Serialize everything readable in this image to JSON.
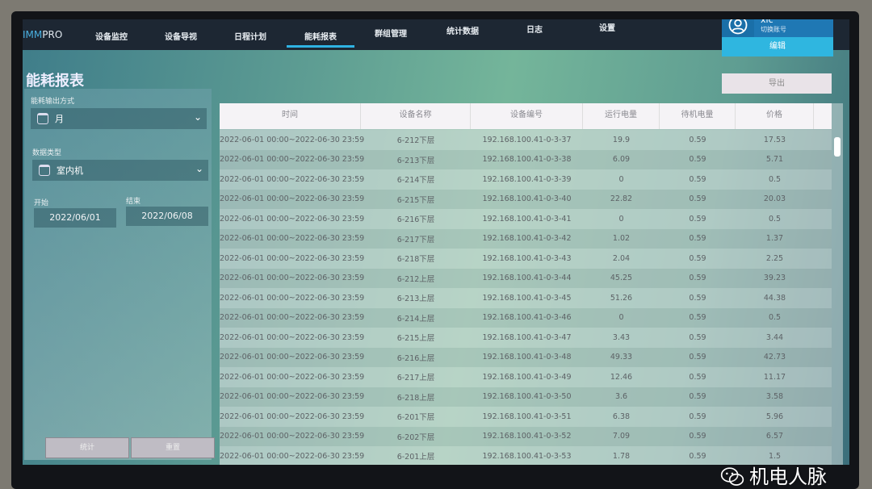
{
  "app": {
    "logo_prefix": "IMM",
    "logo_suffix": "PRO"
  },
  "nav": {
    "items": [
      {
        "label": "设备监控"
      },
      {
        "label": "设备导视"
      },
      {
        "label": "日程计划"
      },
      {
        "label": "能耗报表",
        "active": true
      },
      {
        "label": "群组管理"
      },
      {
        "label": "统计数据"
      },
      {
        "label": "日志"
      },
      {
        "label": "设置"
      }
    ]
  },
  "user": {
    "name": "xlc",
    "switch_label": "切换账号",
    "edit_label": "编辑",
    "icon": "user-circle-icon"
  },
  "window": {
    "minimize": "–",
    "close": "✕"
  },
  "page": {
    "title": "能耗报表",
    "export_label": "导出"
  },
  "filters": {
    "output_mode_label": "能耗输出方式",
    "output_mode_value": "月",
    "data_type_label": "数据类型",
    "data_type_value": "室内机",
    "start_label": "开始",
    "start_value": "2022/06/01",
    "end_label": "结束",
    "end_value": "2022/06/08",
    "stat_button": "统计",
    "reset_button": "重置"
  },
  "table": {
    "columns": [
      "时间",
      "设备名称",
      "设备编号",
      "运行电量",
      "待机电量",
      "价格"
    ],
    "rows": [
      [
        "2022-06-01 00:00~2022-06-30 23:59",
        "6-212下层",
        "192.168.100.41-0-3-37",
        "19.9",
        "0.59",
        "17.53"
      ],
      [
        "2022-06-01 00:00~2022-06-30 23:59",
        "6-213下层",
        "192.168.100.41-0-3-38",
        "6.09",
        "0.59",
        "5.71"
      ],
      [
        "2022-06-01 00:00~2022-06-30 23:59",
        "6-214下层",
        "192.168.100.41-0-3-39",
        "0",
        "0.59",
        "0.5"
      ],
      [
        "2022-06-01 00:00~2022-06-30 23:59",
        "6-215下层",
        "192.168.100.41-0-3-40",
        "22.82",
        "0.59",
        "20.03"
      ],
      [
        "2022-06-01 00:00~2022-06-30 23:59",
        "6-216下层",
        "192.168.100.41-0-3-41",
        "0",
        "0.59",
        "0.5"
      ],
      [
        "2022-06-01 00:00~2022-06-30 23:59",
        "6-217下层",
        "192.168.100.41-0-3-42",
        "1.02",
        "0.59",
        "1.37"
      ],
      [
        "2022-06-01 00:00~2022-06-30 23:59",
        "6-218下层",
        "192.168.100.41-0-3-43",
        "2.04",
        "0.59",
        "2.25"
      ],
      [
        "2022-06-01 00:00~2022-06-30 23:59",
        "6-212上层",
        "192.168.100.41-0-3-44",
        "45.25",
        "0.59",
        "39.23"
      ],
      [
        "2022-06-01 00:00~2022-06-30 23:59",
        "6-213上层",
        "192.168.100.41-0-3-45",
        "51.26",
        "0.59",
        "44.38"
      ],
      [
        "2022-06-01 00:00~2022-06-30 23:59",
        "6-214上层",
        "192.168.100.41-0-3-46",
        "0",
        "0.59",
        "0.5"
      ],
      [
        "2022-06-01 00:00~2022-06-30 23:59",
        "6-215上层",
        "192.168.100.41-0-3-47",
        "3.43",
        "0.59",
        "3.44"
      ],
      [
        "2022-06-01 00:00~2022-06-30 23:59",
        "6-216上层",
        "192.168.100.41-0-3-48",
        "49.33",
        "0.59",
        "42.73"
      ],
      [
        "2022-06-01 00:00~2022-06-30 23:59",
        "6-217上层",
        "192.168.100.41-0-3-49",
        "12.46",
        "0.59",
        "11.17"
      ],
      [
        "2022-06-01 00:00~2022-06-30 23:59",
        "6-218上层",
        "192.168.100.41-0-3-50",
        "3.6",
        "0.59",
        "3.58"
      ],
      [
        "2022-06-01 00:00~2022-06-30 23:59",
        "6-201下层",
        "192.168.100.41-0-3-51",
        "6.38",
        "0.59",
        "5.96"
      ],
      [
        "2022-06-01 00:00~2022-06-30 23:59",
        "6-202下层",
        "192.168.100.41-0-3-52",
        "7.09",
        "0.59",
        "6.57"
      ],
      [
        "2022-06-01 00:00~2022-06-30 23:59",
        "6-201上层",
        "192.168.100.41-0-3-53",
        "1.78",
        "0.59",
        "1.5"
      ]
    ]
  },
  "watermark": {
    "text": "机电人脉"
  },
  "colors": {
    "accent": "#2fb3e3",
    "nav_bg": "#1d2733",
    "user_bg": "#1f78b4",
    "close": "#d32630"
  }
}
